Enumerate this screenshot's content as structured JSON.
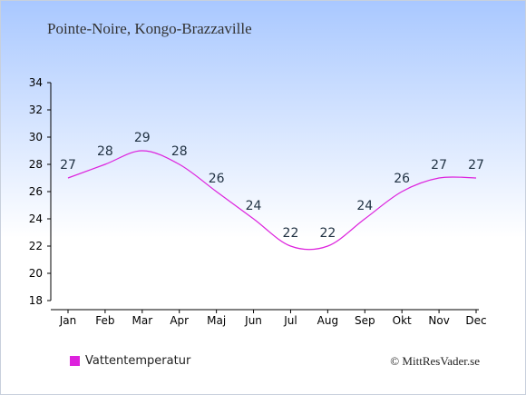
{
  "title": "Pointe-Noire, Kongo-Brazzaville",
  "credit": "© MittResVader.se",
  "chart_data": {
    "type": "line",
    "categories": [
      "Jan",
      "Feb",
      "Mar",
      "Apr",
      "Maj",
      "Jun",
      "Jul",
      "Aug",
      "Sep",
      "Okt",
      "Nov",
      "Dec"
    ],
    "series": [
      {
        "name": "Vattentemperatur",
        "values": [
          27,
          28,
          29,
          28,
          26,
          24,
          22,
          22,
          24,
          26,
          27,
          27
        ],
        "color": "#dd22dd"
      }
    ],
    "ylim": [
      18,
      34
    ],
    "yticks": [
      18,
      20,
      22,
      24,
      26,
      28,
      30,
      32,
      34
    ],
    "grid": false,
    "legend": "bottom-left"
  },
  "colors": {
    "background_top": "#a9c8ff",
    "background_bottom": "#ffffff",
    "line": "#dd22dd",
    "text": "#223344"
  }
}
